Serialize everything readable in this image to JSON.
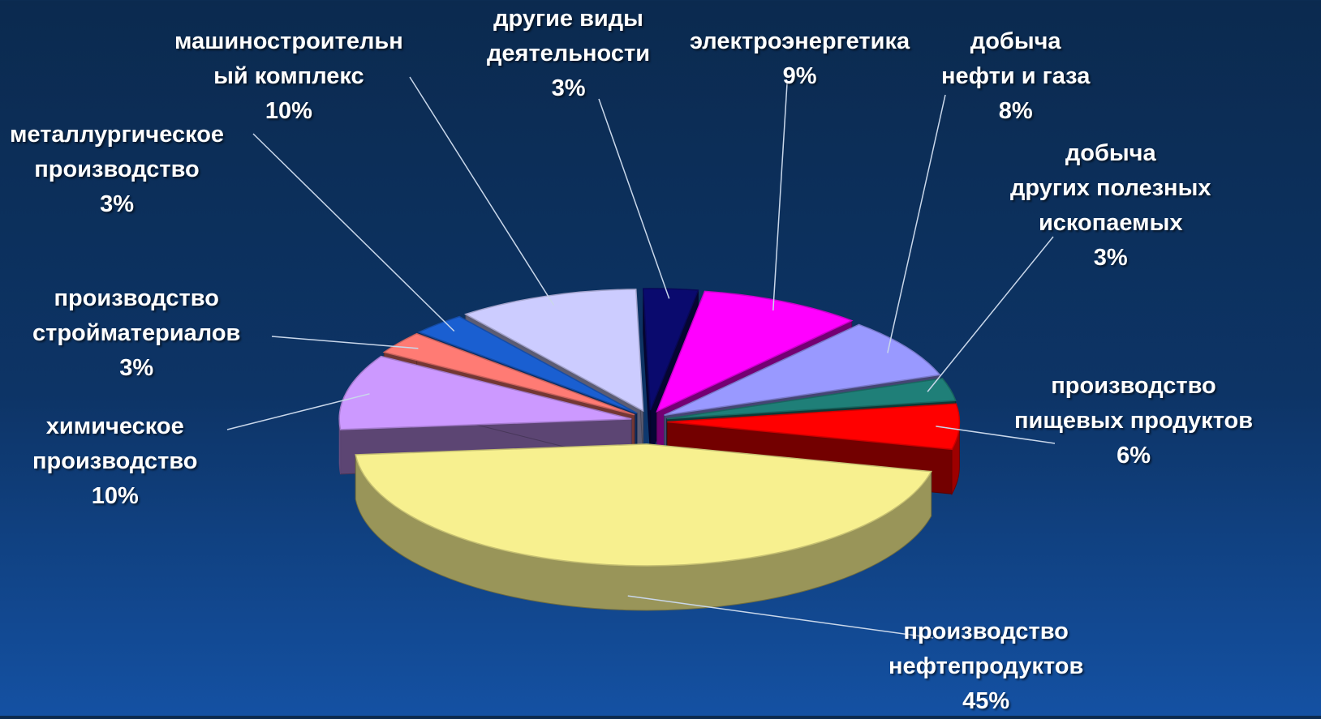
{
  "chart_data": {
    "type": "pie",
    "title": "",
    "exploded": true,
    "three_d": true,
    "slices": [
      {
        "label_lines": [
          "производство",
          "нефтепродуктов"
        ],
        "value": 45,
        "value_label": "45%",
        "color": "#f7f08f"
      },
      {
        "label_lines": [
          "химическое",
          "производство"
        ],
        "value": 10,
        "value_label": "10%",
        "color": "#cc99ff"
      },
      {
        "label_lines": [
          "производство",
          "стройматериалов"
        ],
        "value": 3,
        "value_label": "3%",
        "color": "#ff7b74"
      },
      {
        "label_lines": [
          "металлургическое",
          "производство"
        ],
        "value": 3,
        "value_label": "3%",
        "color": "#1a5fd1"
      },
      {
        "label_lines": [
          "машиностроительн",
          "ый комплекс"
        ],
        "value": 10,
        "value_label": "10%",
        "color": "#ccccff"
      },
      {
        "label_lines": [
          "другие виды",
          "деятельности"
        ],
        "value": 3,
        "value_label": "3%",
        "color": "#0a0a6e"
      },
      {
        "label_lines": [
          "электроэнергетика"
        ],
        "value": 9,
        "value_label": "9%",
        "color": "#ff00ff"
      },
      {
        "label_lines": [
          "добыча",
          "нефти и газа"
        ],
        "value": 8,
        "value_label": "8%",
        "color": "#9999ff"
      },
      {
        "label_lines": [
          "добыча",
          "других полезных",
          "ископаемых"
        ],
        "value": 3,
        "value_label": "3%",
        "color": "#1f7f78"
      },
      {
        "label_lines": [
          "производство",
          "пищевых продуктов"
        ],
        "value": 6,
        "value_label": "6%",
        "color": "#ff0000"
      }
    ]
  }
}
